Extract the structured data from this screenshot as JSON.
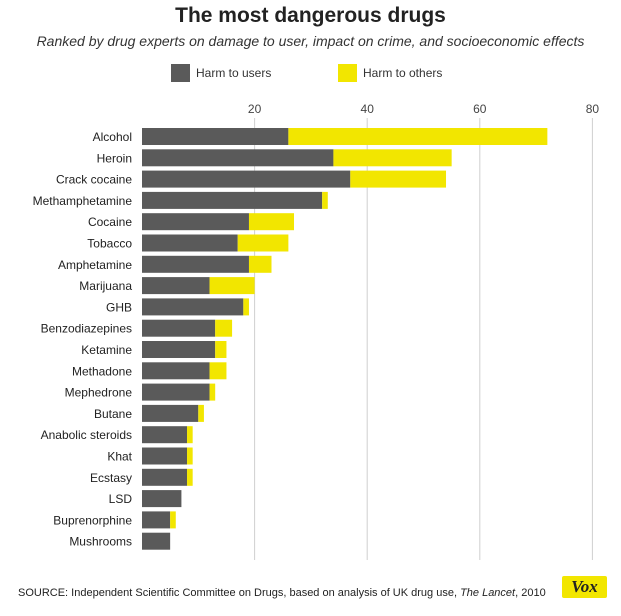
{
  "chart_data": {
    "type": "bar",
    "orientation": "horizontal",
    "stacked": true,
    "title": "The most dangerous drugs",
    "subtitle": "Ranked by drug experts on damage to user, impact on crime, and socioeconomic effects",
    "xlim": [
      0,
      80
    ],
    "xticks": [
      20,
      40,
      60,
      80
    ],
    "grid": true,
    "legend_position": "top",
    "categories": [
      "Alcohol",
      "Heroin",
      "Crack cocaine",
      "Methamphetamine",
      "Cocaine",
      "Tobacco",
      "Amphetamine",
      "Marijuana",
      "GHB",
      "Benzodiazepines",
      "Ketamine",
      "Methadone",
      "Mephedrone",
      "Butane",
      "Anabolic steroids",
      "Khat",
      "Ecstasy",
      "LSD",
      "Buprenorphine",
      "Mushrooms"
    ],
    "series": [
      {
        "name": "Harm to users",
        "color": "#5a5a5a",
        "values": [
          26,
          34,
          37,
          32,
          19,
          17,
          19,
          12,
          18,
          13,
          13,
          12,
          12,
          10,
          8,
          8,
          8,
          7,
          5,
          5
        ]
      },
      {
        "name": "Harm to others",
        "color": "#f2e600",
        "values": [
          46,
          21,
          17,
          1,
          8,
          9,
          4,
          8,
          1,
          3,
          2,
          3,
          1,
          1,
          1,
          1,
          1,
          0,
          1,
          0
        ]
      }
    ]
  },
  "source": {
    "prefix": "SOURCE: Independent Scientific Committee on Drugs, based on analysis of UK drug use, ",
    "journal": "The Lancet",
    "suffix": ", 2010"
  },
  "logo": {
    "text": "Vox"
  }
}
